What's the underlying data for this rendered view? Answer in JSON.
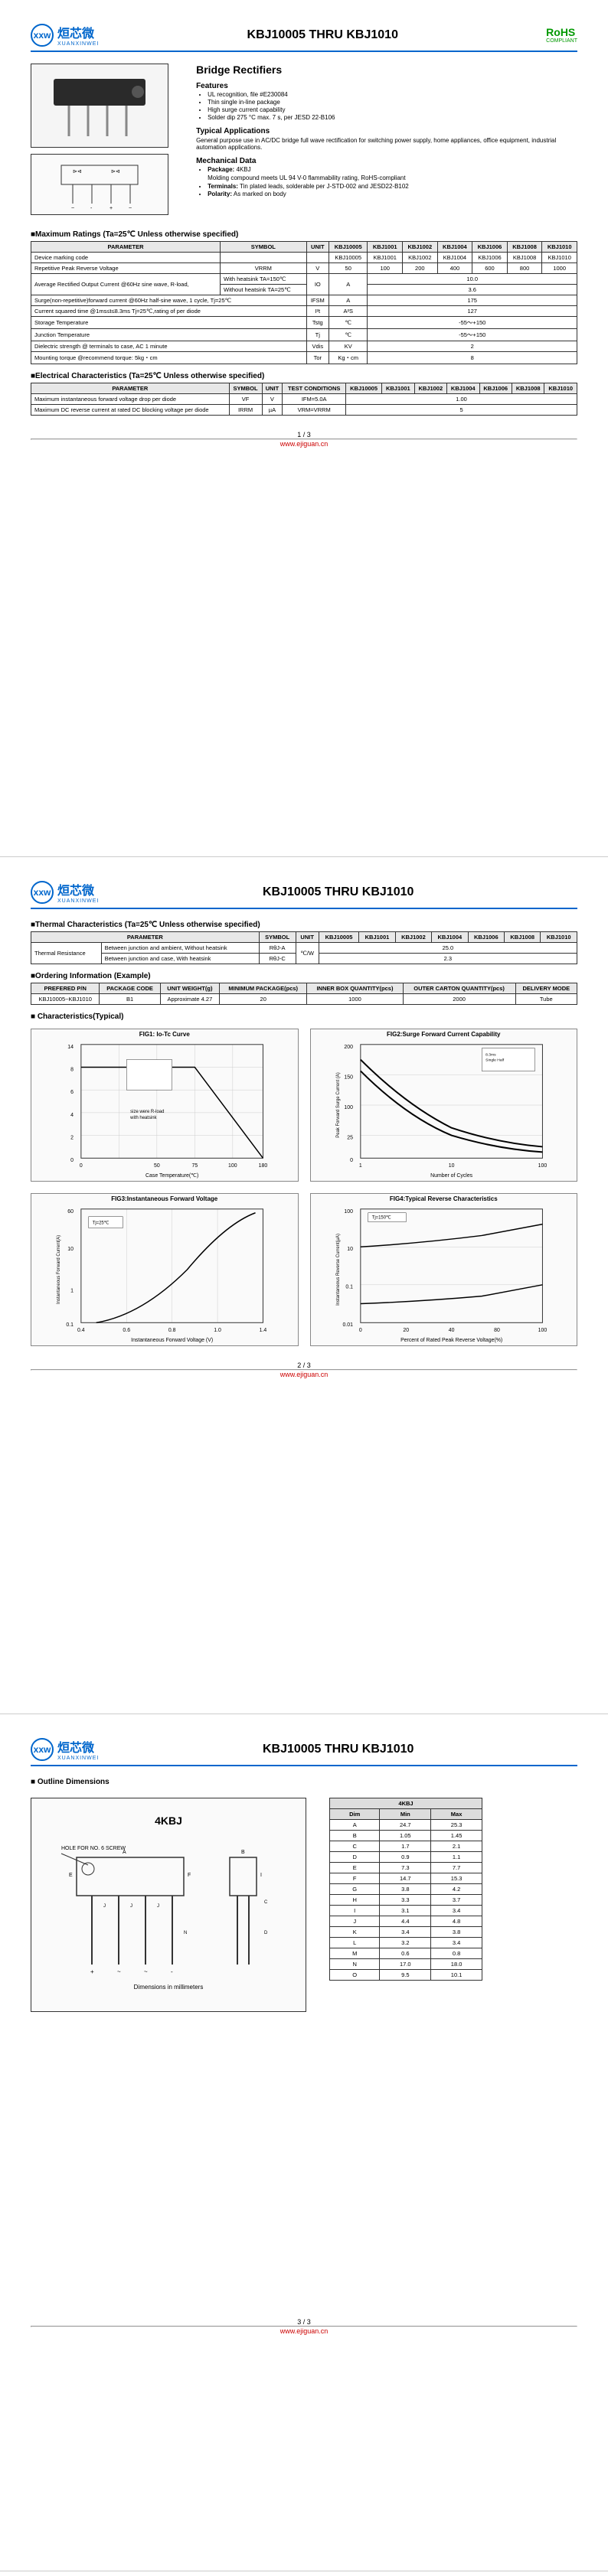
{
  "logo": {
    "cn": "烜芯微",
    "en": "XUANXINWEI",
    "icon": "xxw"
  },
  "title": "KBJ10005 THRU KBJ1010",
  "rohs": {
    "label": "RoHS",
    "sub": "COMPLIANT"
  },
  "subtitle": "Bridge Rectifiers",
  "features": {
    "heading": "Features",
    "items": [
      "UL recognition, file #E230084",
      "Thin single in-line package",
      "High surge current capability",
      "Solder dip 275 °C max. 7 s, per JESD 22-B106"
    ]
  },
  "applications": {
    "heading": "Typical Applications",
    "text": "General purpose use in AC/DC bridge full wave rectification for switching power supply, home appliances, office equipment, industrial automation applications."
  },
  "mechanical": {
    "heading": "Mechanical Data",
    "pkg_label": "Package:",
    "pkg_val": "4KBJ",
    "molding": "Molding compound meets UL 94 V-0 flammability rating, RoHS-compliant",
    "term_label": "Terminals:",
    "term_val": "Tin plated leads, solderable per J-STD-002 and JESD22-B102",
    "pol_label": "Polarity:",
    "pol_val": "As marked on body"
  },
  "max_ratings": {
    "title": "■Maximum Ratings (Ta=25℃ Unless otherwise specified)",
    "headers": [
      "PARAMETER",
      "SYMBOL",
      "UNIT",
      "KBJ10005",
      "KBJ1001",
      "KBJ1002",
      "KBJ1004",
      "KBJ1006",
      "KBJ1008",
      "KBJ1010"
    ],
    "rows": [
      {
        "param": "Device marking code",
        "sym": "",
        "unit": "",
        "vals": [
          "KBJ10005",
          "KBJ1001",
          "KBJ1002",
          "KBJ1004",
          "KBJ1006",
          "KBJ1008",
          "KBJ1010"
        ]
      },
      {
        "param": "Repetitive Peak Reverse Voltage",
        "sym": "VRRM",
        "unit": "V",
        "vals": [
          "50",
          "100",
          "200",
          "400",
          "600",
          "800",
          "1000"
        ]
      }
    ],
    "aro": {
      "param": "Average Rectified Output Current @60Hz sine wave, R-load,",
      "sub1": "With heatsink TA=150℃",
      "sub2": "Without heatsink TA=25℃",
      "sym": "IO",
      "unit": "A",
      "v1": "10.0",
      "v2": "3.6"
    },
    "surge": {
      "param": "Surge(non-repetitive)forward current @60Hz half-sine wave, 1 cycle, Tj=25℃",
      "sym": "IFSM",
      "unit": "A",
      "val": "175"
    },
    "i2t": {
      "param": "Current squared time @1ms≤t≤8.3ms Tj=25℃,rating of per diode",
      "sym": "I²t",
      "unit": "A²S",
      "val": "127"
    },
    "tstg": {
      "param": "Storage Temperature",
      "sym": "Tstg",
      "unit": "℃",
      "val": "-55～+150"
    },
    "tj": {
      "param": "Junction Temperature",
      "sym": "Tj",
      "unit": "℃",
      "val": "-55～+150"
    },
    "vdis": {
      "param": "Dielectric strength @ terminals to case, AC 1 minute",
      "sym": "Vdis",
      "unit": "KV",
      "val": "2"
    },
    "tor": {
      "param": "Mounting torque @recommend torque: 5kg・cm",
      "sym": "Tor",
      "unit": "Kg・cm",
      "val": "8"
    }
  },
  "elec": {
    "title": "■Electrical Characteristics (Ta=25℃ Unless otherwise specified)",
    "headers": [
      "PARAMETER",
      "SYMBOL",
      "UNIT",
      "TEST CONDITIONS",
      "KBJ10005",
      "KBJ1001",
      "KBJ1002",
      "KBJ1004",
      "KBJ1006",
      "KBJ1008",
      "KBJ1010"
    ],
    "r1": {
      "param": "Maximum instantaneous forward voltage drop per diode",
      "sym": "VF",
      "unit": "V",
      "cond": "IFM=5.0A",
      "val": "1.00"
    },
    "r2": {
      "param": "Maximum DC reverse current at rated DC blocking voltage per diode",
      "sym": "IRRM",
      "unit": "µA",
      "cond": "VRM=VRRM",
      "val": "5"
    }
  },
  "thermal": {
    "title": "■Thermal Characteristics (Ta=25℃ Unless otherwise specified)",
    "headers": [
      "PARAMETER",
      "SYMBOL",
      "UNIT",
      "KBJ10005",
      "KBJ1001",
      "KBJ1002",
      "KBJ1004",
      "KBJ1006",
      "KBJ1008",
      "KBJ1010"
    ],
    "param": "Thermal Resistance",
    "r1": {
      "cond": "Between junction and ambient, Without heatsink",
      "sym": "RθJ-A",
      "val": "25.0"
    },
    "r2": {
      "cond": "Between junction and case, With heatsink",
      "sym": "RθJ-C",
      "val": "2.3"
    },
    "unit": "℃/W"
  },
  "ordering": {
    "title": "■Ordering Information (Example)",
    "headers": [
      "PREFERED P/N",
      "PACKAGE CODE",
      "UNIT WEIGHT(g)",
      "MINIMUM PACKAGE(pcs)",
      "INNER BOX QUANTITY(pcs)",
      "OUTER CARTON QUANTITY(pcs)",
      "DELIVERY MODE"
    ],
    "row": [
      "KBJ10005~KBJ1010",
      "B1",
      "Approximate 4.27",
      "20",
      "1000",
      "2000",
      "Tube"
    ]
  },
  "charts_title": "■ Characteristics(Typical)",
  "charts": {
    "fig1": "FIG1: Io-Tc Curve",
    "fig2": "FIG2:Surge Forward Current Capability",
    "fig3": "FIG3:Instantaneous Forward Voltage",
    "fig4": "FIG4:Typical Reverse Characteristics",
    "fig1_note1": "size were R-load",
    "fig1_note2": "with heatsink",
    "fig1_x": "Case Temperature(℃)",
    "fig2_x": "Number of Cycles",
    "fig2_y": "Peak Forward Surge Current (A)",
    "fig3_x": "Instantaneous Forward Voltage (V)",
    "fig3_y": "Instantaneous Forward Current(A)",
    "fig4_x": "Percent of Rated Peak Reverse Voltage(%)",
    "fig4_y": "Instantaneous Reverse Current(µA)",
    "fig4_note": "Tj=150℃"
  },
  "dims": {
    "title": "■ Outline Dimensions",
    "pkg": "4KBJ",
    "hole_note": "HOLE FOR NO. 6 SCREW",
    "dim_note": "Dimensions in millimeters",
    "headers": [
      "Dim",
      "Min",
      "Max"
    ],
    "rows": [
      [
        "A",
        "24.7",
        "25.3"
      ],
      [
        "B",
        "1.05",
        "1.45"
      ],
      [
        "C",
        "1.7",
        "2.1"
      ],
      [
        "D",
        "0.9",
        "1.1"
      ],
      [
        "E",
        "7.3",
        "7.7"
      ],
      [
        "F",
        "14.7",
        "15.3"
      ],
      [
        "G",
        "3.8",
        "4.2"
      ],
      [
        "H",
        "3.3",
        "3.7"
      ],
      [
        "I",
        "3.1",
        "3.4"
      ],
      [
        "J",
        "4.4",
        "4.8"
      ],
      [
        "K",
        "3.4",
        "3.8"
      ],
      [
        "L",
        "3.2",
        "3.4"
      ],
      [
        "M",
        "0.6",
        "0.8"
      ],
      [
        "N",
        "17.0",
        "18.0"
      ],
      [
        "O",
        "9.5",
        "10.1"
      ]
    ]
  },
  "footer": {
    "p1": "1 / 3",
    "p2": "2 / 3",
    "p3": "3 / 3",
    "url": "www.ejiguan.cn"
  }
}
